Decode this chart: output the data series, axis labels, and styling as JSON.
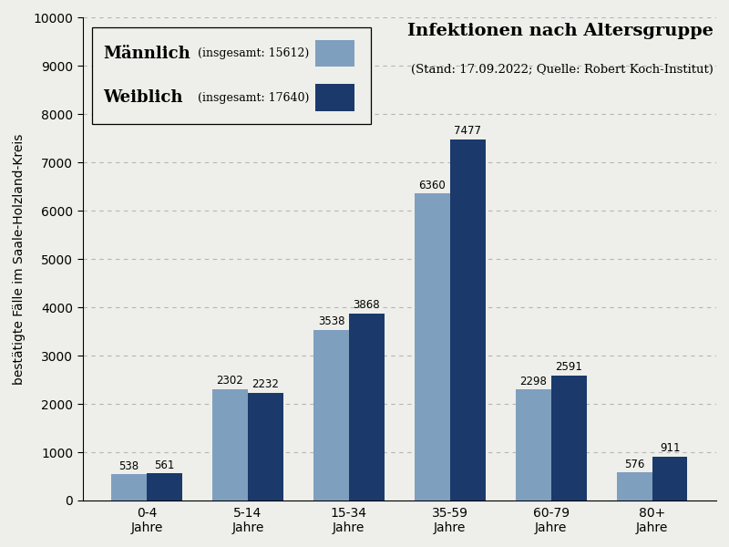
{
  "categories": [
    "0-4\nJahre",
    "5-14\nJahre",
    "15-34\nJahre",
    "35-59\nJahre",
    "60-79\nJahre",
    "80+\nJahre"
  ],
  "maennlich": [
    538,
    2302,
    3538,
    6360,
    2298,
    576
  ],
  "weiblich": [
    561,
    2232,
    3868,
    7477,
    2591,
    911
  ],
  "maennlich_total": 15612,
  "weiblich_total": 17640,
  "color_maennlich": "#7f9fbe",
  "color_weiblich": "#1b3a6b",
  "title": "Infektionen nach Altersgruppe",
  "subtitle": "(Stand: 17.09.2022; Quelle: Robert Koch-Institut)",
  "ylabel": "bestätigte Fälle im Saale-Holzland-Kreis",
  "ylim": [
    0,
    10000
  ],
  "yticks": [
    0,
    1000,
    2000,
    3000,
    4000,
    5000,
    6000,
    7000,
    8000,
    9000,
    10000
  ],
  "background_color": "#eeeeea",
  "bar_width": 0.35,
  "title_fontsize": 14,
  "subtitle_fontsize": 9.5,
  "legend_name_fontsize": 13,
  "legend_detail_fontsize": 9,
  "axis_fontsize": 10,
  "tick_fontsize": 10,
  "value_fontsize": 8.5
}
